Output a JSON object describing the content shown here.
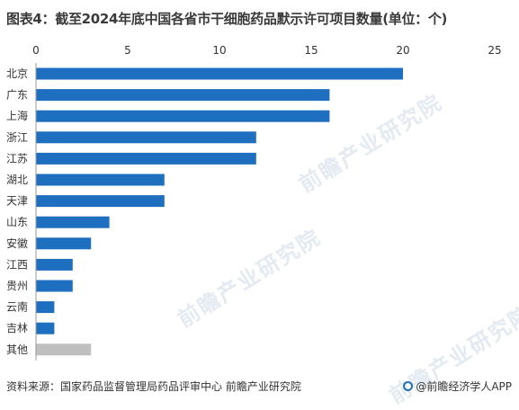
{
  "title": "图表4：截至2024年底中国各省市干细胞药品默示许可项目数量(单位：个)",
  "footer": {
    "source": "资料来源：国家药品监督管理局药品评审中心 前瞻产业研究院",
    "brand": "@前瞻经济学人APP"
  },
  "watermark": "前瞻产业研究院",
  "colors": {
    "bar": "#1e6fbf",
    "bar_other": "#bfbfbf",
    "axis": "#999999"
  },
  "chart_data": {
    "type": "bar",
    "orientation": "horizontal",
    "title": "图表4：截至2024年底中国各省市干细胞药品默示许可项目数量(单位：个)",
    "categories": [
      "北京",
      "广东",
      "上海",
      "浙江",
      "江苏",
      "湖北",
      "天津",
      "山东",
      "安徽",
      "江西",
      "贵州",
      "云南",
      "吉林",
      "其他"
    ],
    "values": [
      20,
      16,
      16,
      12,
      12,
      7,
      7,
      4,
      3,
      2,
      2,
      1,
      1,
      3
    ],
    "xlim": [
      0,
      25
    ],
    "xticks": [
      0,
      5,
      10,
      15,
      20,
      25
    ],
    "x_axis_position": "top",
    "grid": false,
    "legend": "none"
  }
}
